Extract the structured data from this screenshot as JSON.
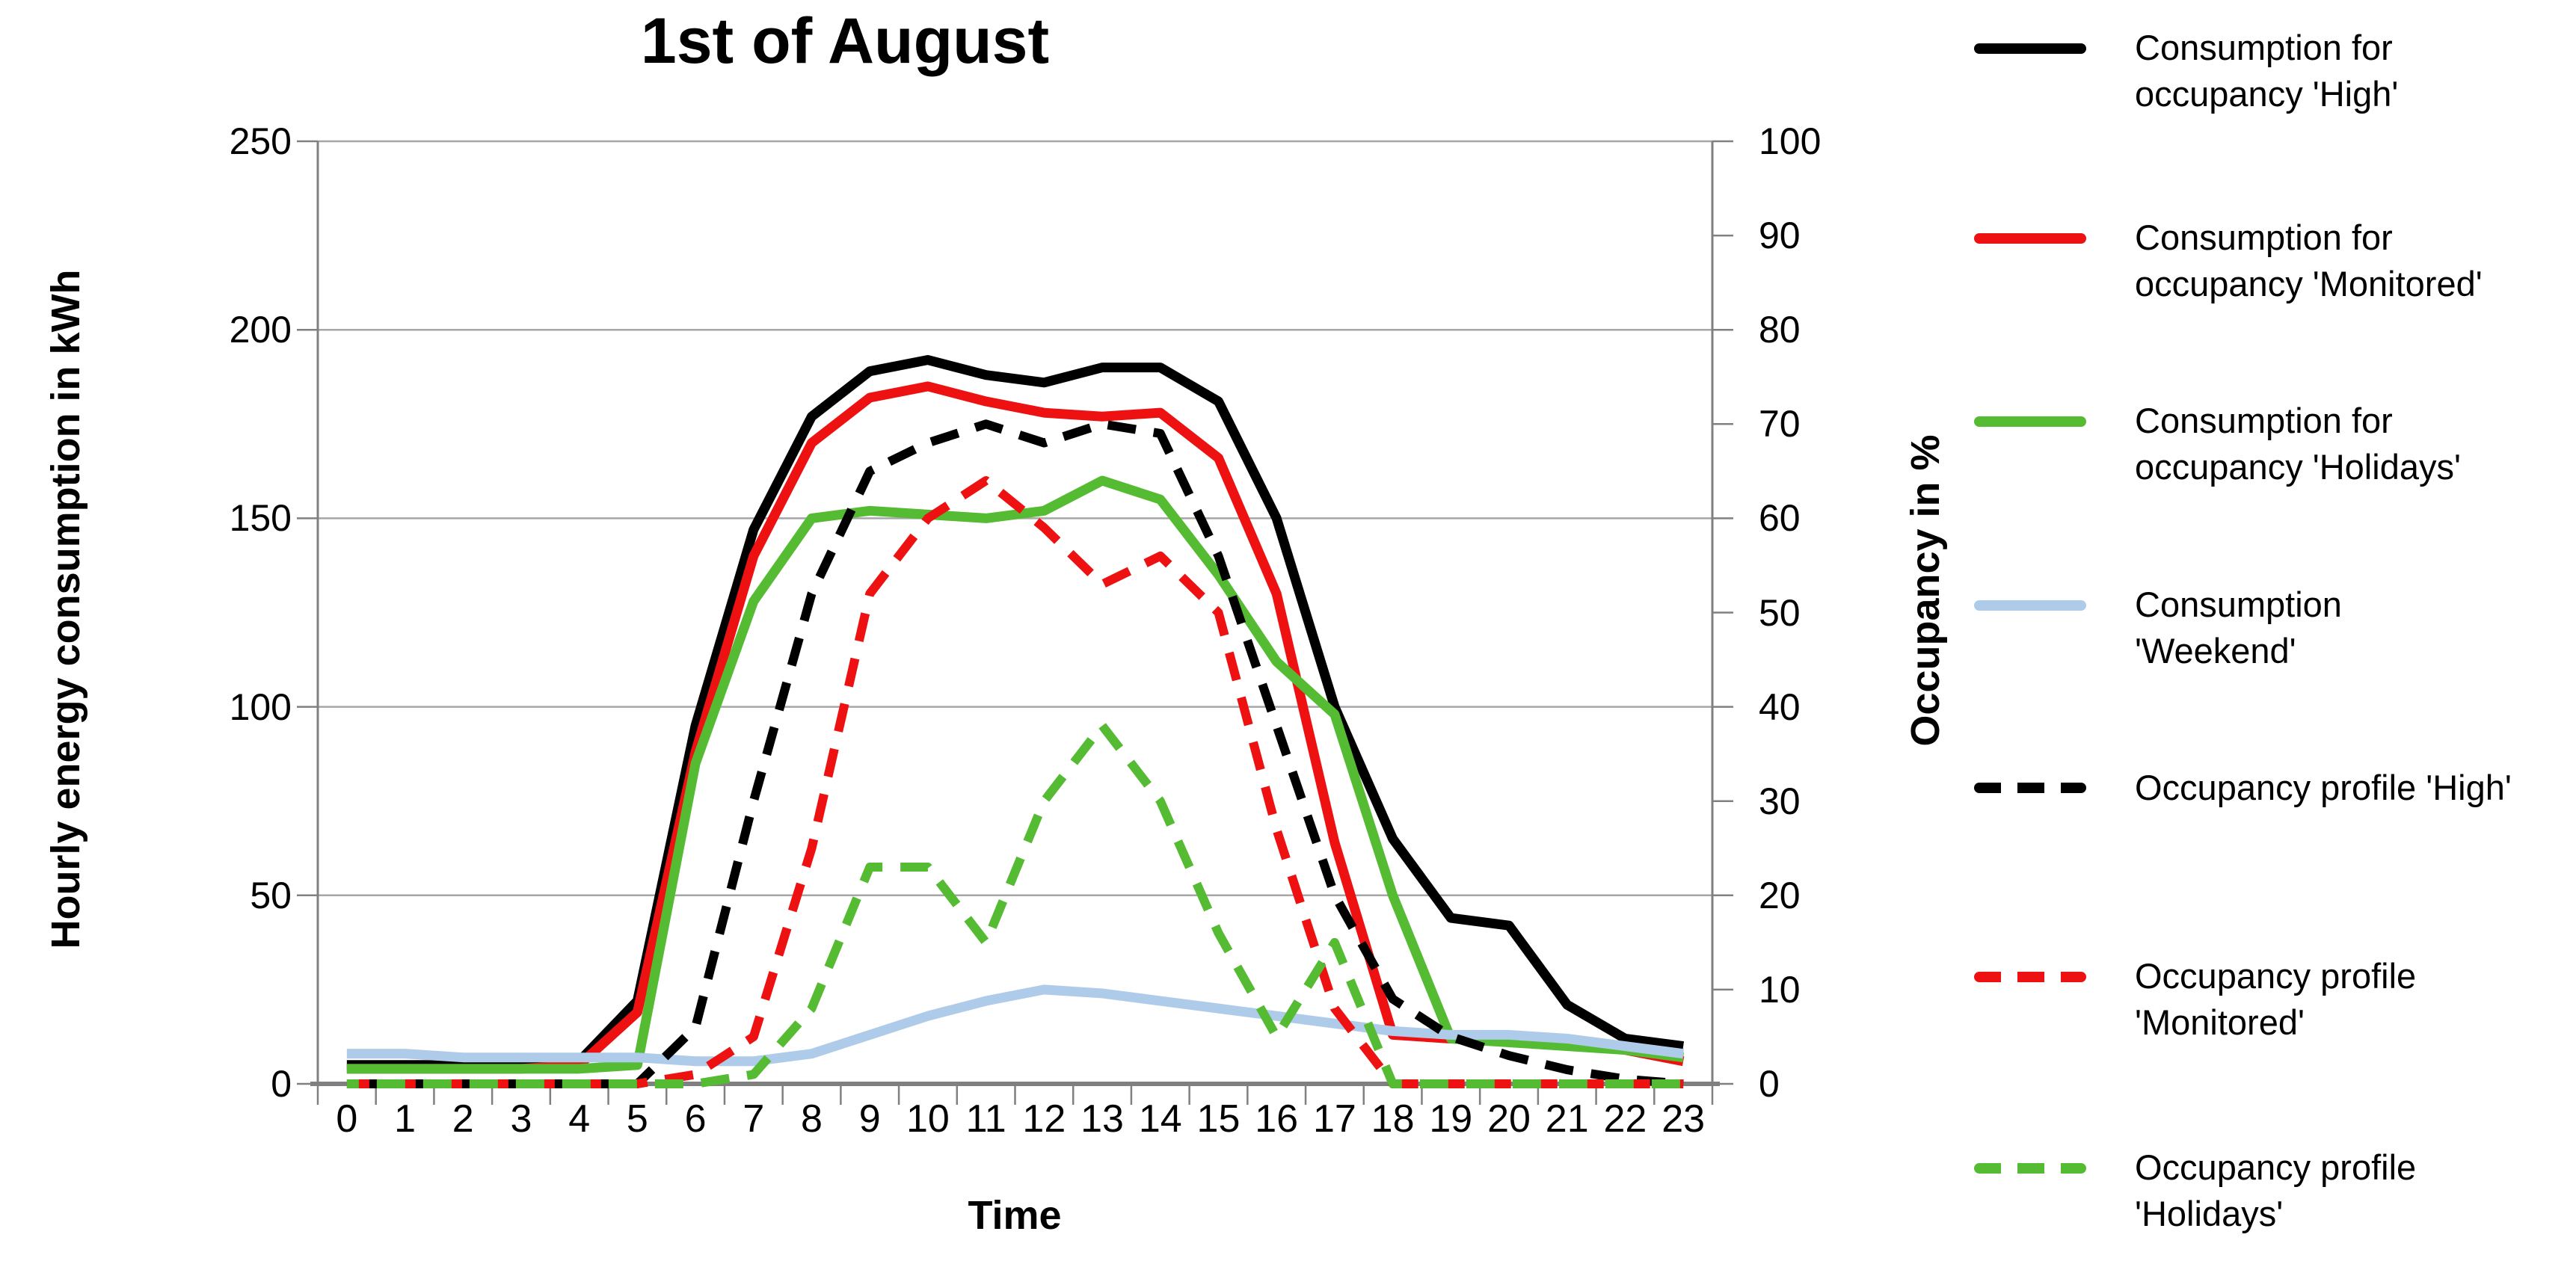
{
  "title": "1st of August",
  "x_axis": {
    "title": "Time",
    "labels": [
      "0",
      "1",
      "2",
      "3",
      "4",
      "5",
      "6",
      "7",
      "8",
      "9",
      "10",
      "11",
      "12",
      "13",
      "14",
      "15",
      "16",
      "17",
      "18",
      "19",
      "20",
      "21",
      "22",
      "23"
    ]
  },
  "y_left_axis": {
    "title": "Hourly energy consumption in kWh",
    "tick_labels": [
      "250",
      "200",
      "150",
      "100",
      "50",
      "0"
    ],
    "tick_values": [
      250,
      200,
      150,
      100,
      50,
      0
    ],
    "max": 250
  },
  "y_right_axis": {
    "title": "Occupancy in %",
    "tick_labels": [
      "100",
      "90",
      "80",
      "70",
      "60",
      "50",
      "40",
      "30",
      "20",
      "10",
      "0"
    ],
    "tick_values": [
      100,
      90,
      80,
      70,
      60,
      50,
      40,
      30,
      20,
      10,
      0
    ],
    "max": 100
  },
  "colors": {
    "black": "#000000",
    "red": "#ee1111",
    "green": "#55bb33",
    "light_blue": "#aecbe9",
    "gridline": "#a6a6a6",
    "axis": "#808080"
  },
  "chart_data": {
    "type": "line",
    "x": [
      0,
      1,
      2,
      3,
      4,
      5,
      6,
      7,
      8,
      9,
      10,
      11,
      12,
      13,
      14,
      15,
      16,
      17,
      18,
      19,
      20,
      21,
      22,
      23
    ],
    "xlabel": "Time",
    "ylabel_left": "Hourly energy consumption in kWh",
    "ylabel_right": "Occupancy in %",
    "ylim_left": [
      0,
      250
    ],
    "ylim_right": [
      0,
      100
    ],
    "grid": true,
    "legend_position": "right",
    "series": [
      {
        "key": "consumption-high",
        "name": "Consumption for occupancy 'High'",
        "legend_lines": [
          "Consumption for",
          "occupancy 'High'"
        ],
        "color": "#000000",
        "style": "solid",
        "axis": "left",
        "values": [
          5,
          5,
          5,
          5,
          6,
          22,
          95,
          147,
          177,
          189,
          192,
          188,
          186,
          190,
          190,
          181,
          150,
          100,
          65,
          44,
          42,
          21,
          12,
          10
        ]
      },
      {
        "key": "consumption-monitored",
        "name": "Consumption for occupancy 'Monitored'",
        "legend_lines": [
          "Consumption for",
          "occupancy 'Monitored'"
        ],
        "color": "#ee1111",
        "style": "solid",
        "axis": "left",
        "values": [
          4,
          4,
          4,
          4,
          5,
          19,
          88,
          140,
          170,
          182,
          185,
          181,
          178,
          177,
          178,
          166,
          130,
          64,
          13,
          12,
          12,
          11,
          9,
          6
        ]
      },
      {
        "key": "consumption-holidays",
        "name": "Consumption for occupancy 'Holidays'",
        "legend_lines": [
          "Consumption for",
          "occupancy 'Holidays'"
        ],
        "color": "#55bb33",
        "style": "solid",
        "axis": "left",
        "values": [
          4,
          4,
          4,
          4,
          4,
          5,
          85,
          128,
          150,
          152,
          151,
          150,
          152,
          160,
          155,
          135,
          112,
          98,
          50,
          12,
          11,
          10,
          9,
          7
        ]
      },
      {
        "key": "consumption-weekend",
        "name": "Consumption 'Weekend'",
        "legend_lines": [
          "Consumption",
          "'Weekend'"
        ],
        "color": "#aecbe9",
        "style": "solid",
        "axis": "left",
        "values": [
          8,
          8,
          7,
          7,
          7,
          7,
          6,
          6,
          8,
          13,
          18,
          22,
          25,
          24,
          22,
          20,
          18,
          16,
          14,
          13,
          13,
          12,
          10,
          8
        ]
      },
      {
        "key": "occupancy-high",
        "name": "Occupancy profile 'High'",
        "legend_lines": [
          "Occupancy profile 'High'"
        ],
        "color": "#000000",
        "style": "dashed",
        "axis": "right",
        "values": [
          0,
          0,
          0,
          0,
          0,
          0,
          6,
          30,
          52,
          65,
          68,
          70,
          68,
          70,
          69,
          56,
          38,
          20,
          9,
          5,
          3,
          1.5,
          0.5,
          0
        ]
      },
      {
        "key": "occupancy-monitored",
        "name": "Occupancy profile 'Monitored'",
        "legend_lines": [
          "Occupancy profile",
          "'Monitored'"
        ],
        "color": "#ee1111",
        "style": "dashed",
        "axis": "right",
        "values": [
          0,
          0,
          0,
          0,
          0,
          0,
          1,
          5,
          25,
          52,
          60,
          64,
          59,
          53,
          56,
          50,
          27,
          8,
          0,
          0,
          0,
          0,
          0,
          0
        ]
      },
      {
        "key": "occupancy-holidays",
        "name": "Occupancy profile 'Holidays'",
        "legend_lines": [
          "Occupancy profile",
          "'Holidays'"
        ],
        "color": "#55bb33",
        "style": "dashed",
        "axis": "right",
        "values": [
          0,
          0,
          0,
          0,
          0,
          0,
          0,
          1,
          8,
          23,
          23,
          15,
          30,
          38,
          30,
          16,
          5,
          15,
          0,
          0,
          0,
          0,
          0,
          0
        ]
      }
    ]
  },
  "legend_marker_y": [
    65,
    319,
    564,
    810,
    1054,
    1307,
    1563
  ]
}
